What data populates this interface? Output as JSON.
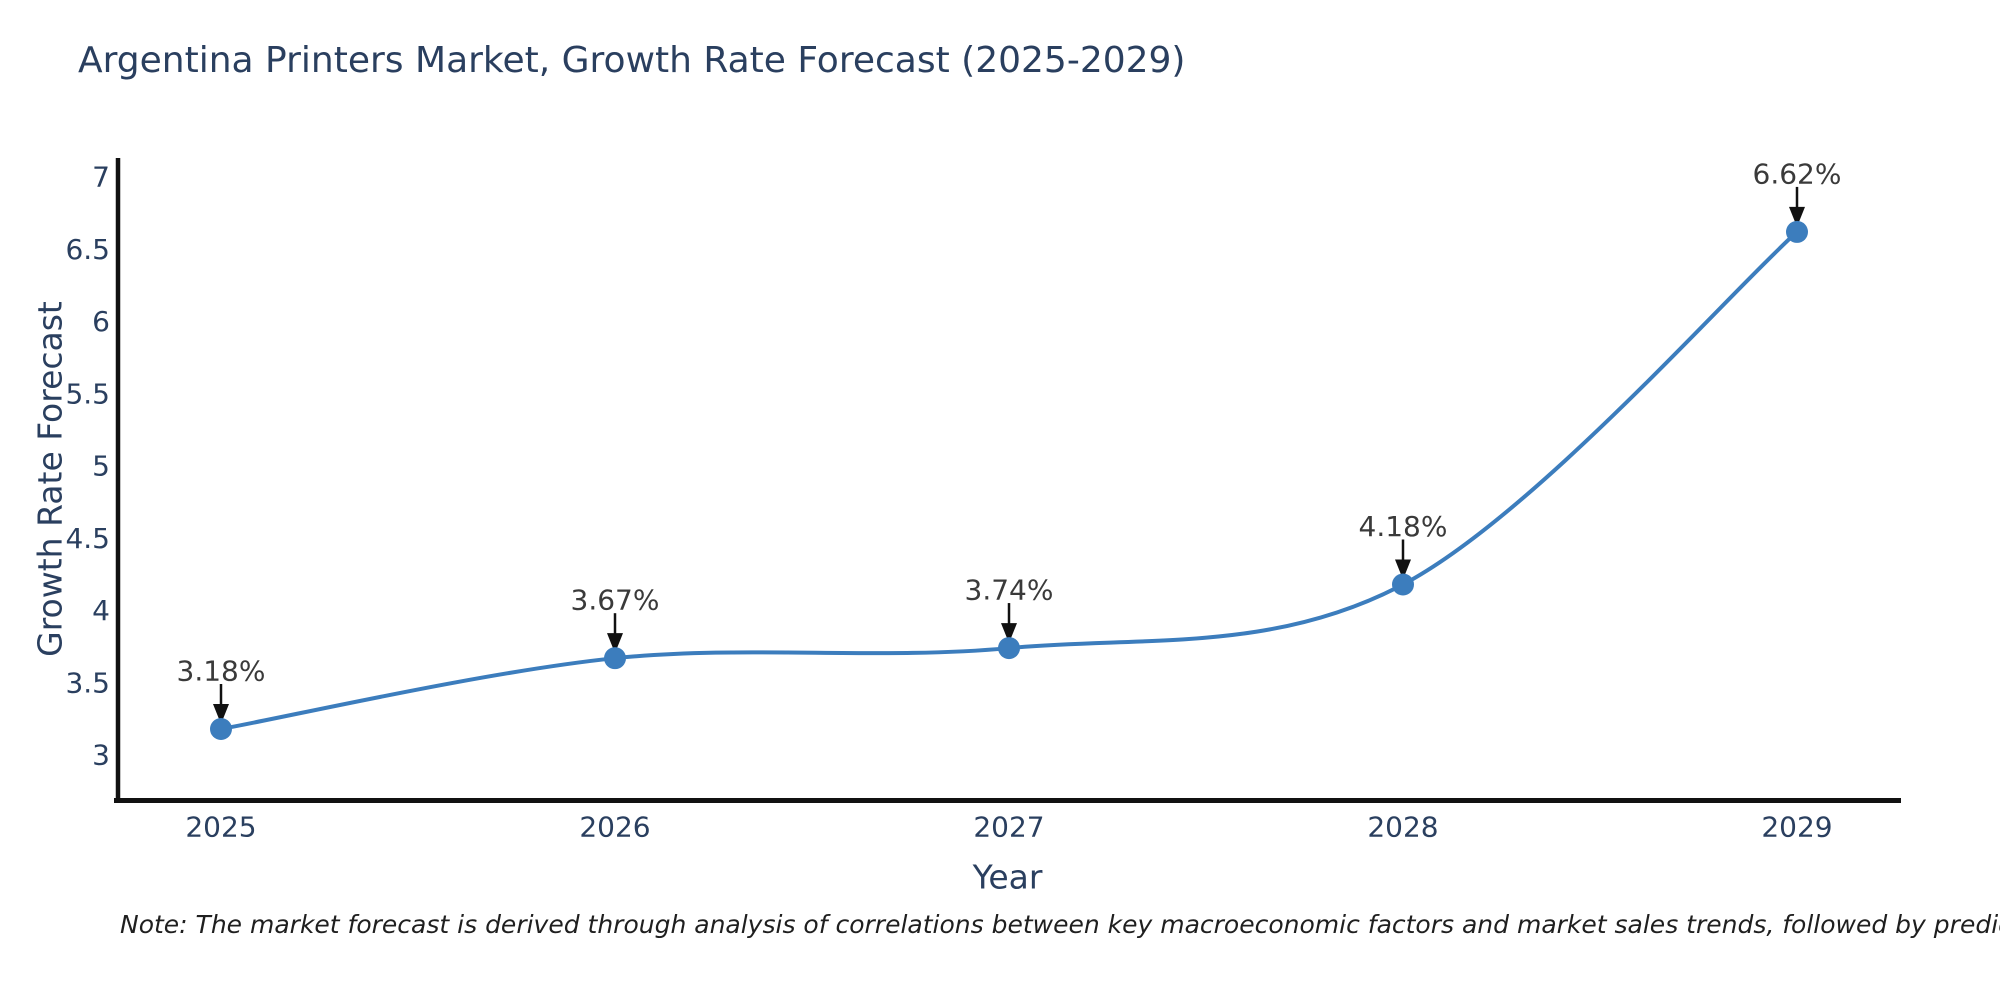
{
  "title": "Argentina Printers Market, Growth Rate Forecast (2025-2029)",
  "note": "Note: The market forecast is derived through analysis of correlations between key macroeconomic factors and market sales trends, followed by predictive modeling to project future sales",
  "chart_data": {
    "type": "line",
    "title": "Argentina Printers Market, Growth Rate Forecast (2025-2029)",
    "xlabel": "Year",
    "ylabel": "Growth Rate Forecast",
    "x": [
      2025,
      2026,
      2027,
      2028,
      2029
    ],
    "series": [
      {
        "name": "Growth Rate Forecast",
        "values": [
          3.18,
          3.67,
          3.74,
          4.18,
          6.62
        ],
        "point_labels": [
          "3.18%",
          "3.67%",
          "3.74%",
          "4.18%",
          "6.62%"
        ]
      }
    ],
    "yticks": [
      3,
      3.5,
      4,
      4.5,
      5,
      5.5,
      6,
      6.5,
      7
    ],
    "ylim": [
      2.7,
      7.15
    ],
    "line_shape": "spline",
    "grid": false,
    "legend": "none",
    "annotations_have_arrows": true,
    "colors": {
      "line": "#3c7dbd",
      "marker": "#3c7dbd",
      "axis": "#111111",
      "tick_text": "#2a3f5f",
      "axis_title_text": "#2a3f5f",
      "annotation_text": "#3a3a3a",
      "arrow": "#111111",
      "title_text": "#2a3f5f"
    }
  }
}
